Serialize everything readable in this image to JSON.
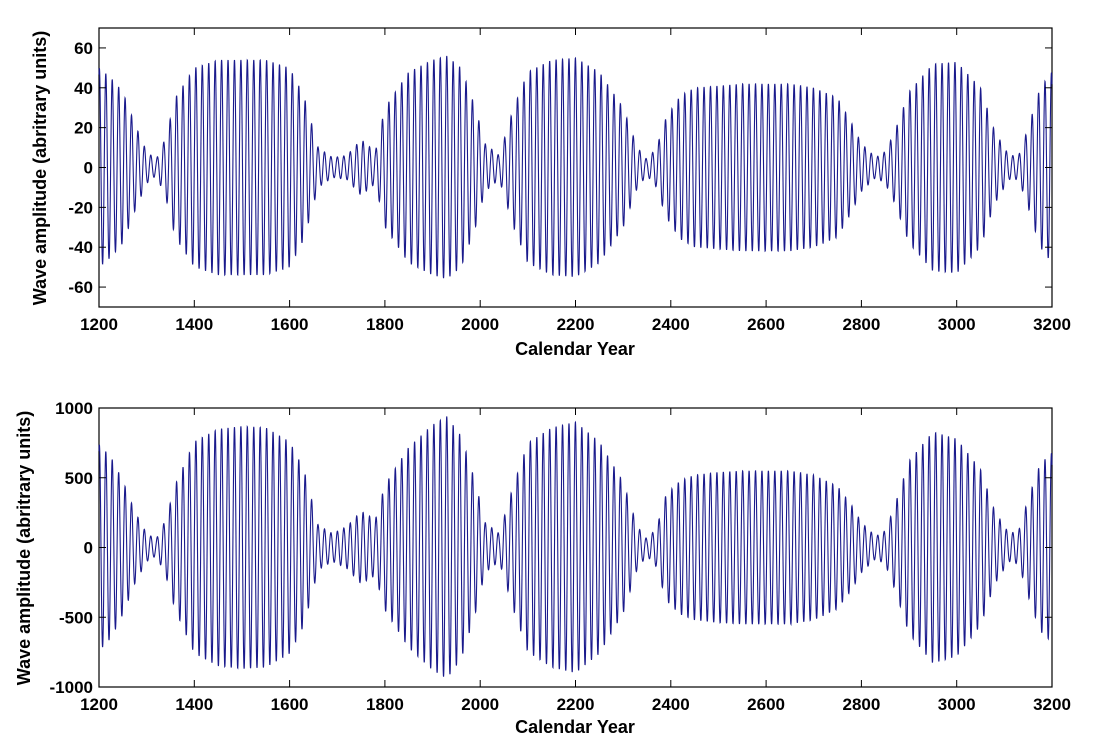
{
  "chart_data": [
    {
      "type": "line",
      "title": "",
      "xlabel": "Calendar Year",
      "ylabel": "Wave amplitude (abritrary units)",
      "xlim": [
        1200,
        3200
      ],
      "ylim": [
        -70,
        70
      ],
      "xticks": [
        1200,
        1400,
        1600,
        1800,
        2000,
        2200,
        2400,
        2600,
        2800,
        3000,
        3200
      ],
      "xtick_labels": [
        "1200",
        "1400",
        "1600",
        "1800",
        "2000",
        "2200",
        "2400",
        "2600",
        "2800",
        "3000",
        "3200"
      ],
      "yticks": [
        -60,
        -40,
        -20,
        0,
        20,
        40,
        60
      ],
      "ytick_labels": [
        "-60",
        "-40",
        "-20",
        "0",
        "20",
        "40",
        "60"
      ],
      "grid": false,
      "line_color": "#1a1a8c",
      "series": [
        {
          "x": [
            1200,
            1225,
            1250,
            1275,
            1300,
            1320,
            1340,
            1360,
            1400,
            1450,
            1500,
            1550,
            1600,
            1630,
            1660,
            1690,
            1720,
            1750,
            1780,
            1800,
            1850,
            1900,
            1930,
            1960,
            1990,
            2010,
            2040,
            2070,
            2100,
            2150,
            2200,
            2250,
            2300,
            2330,
            2350,
            2370,
            2390,
            2420,
            2450,
            2500,
            2550,
            2600,
            2650,
            2700,
            2750,
            2780,
            2800,
            2830,
            2850,
            2870,
            2900,
            2950,
            3000,
            3050,
            3080,
            3110,
            3130,
            3150,
            3175,
            3200
          ],
          "envelope": [
            50,
            45,
            38,
            22,
            8,
            4,
            15,
            35,
            50,
            54,
            54,
            54,
            50,
            36,
            10,
            5,
            6,
            14,
            8,
            30,
            48,
            54,
            56,
            50,
            30,
            12,
            6,
            30,
            48,
            54,
            55,
            48,
            30,
            10,
            4,
            10,
            25,
            36,
            40,
            41,
            42,
            42,
            42,
            40,
            35,
            22,
            12,
            5,
            8,
            18,
            38,
            52,
            53,
            40,
            18,
            6,
            6,
            20,
            40,
            48
          ],
          "period_years": 13.5
        }
      ]
    },
    {
      "type": "line",
      "title": "",
      "xlabel": "Calendar Year",
      "ylabel": "Wave amplitude (abritrary units)",
      "xlim": [
        1200,
        3200
      ],
      "ylim": [
        -1000,
        1000
      ],
      "xticks": [
        1200,
        1400,
        1600,
        1800,
        2000,
        2200,
        2400,
        2600,
        2800,
        3000,
        3200
      ],
      "xtick_labels": [
        "1200",
        "1400",
        "1600",
        "1800",
        "2000",
        "2200",
        "2400",
        "2600",
        "2800",
        "3000",
        "3200"
      ],
      "yticks": [
        -1000,
        -500,
        0,
        500,
        1000
      ],
      "ytick_labels": [
        "-1000",
        "-500",
        "0",
        "500",
        "1000"
      ],
      "grid": false,
      "line_color": "#1a1a8c",
      "series": [
        {
          "x": [
            1200,
            1225,
            1250,
            1275,
            1300,
            1320,
            1340,
            1360,
            1400,
            1450,
            1500,
            1550,
            1600,
            1630,
            1660,
            1690,
            1720,
            1750,
            1780,
            1800,
            1850,
            1900,
            1930,
            1960,
            1990,
            2010,
            2040,
            2070,
            2100,
            2150,
            2200,
            2250,
            2300,
            2330,
            2350,
            2370,
            2390,
            2420,
            2450,
            2500,
            2550,
            2600,
            2650,
            2700,
            2750,
            2780,
            2800,
            2830,
            2850,
            2870,
            2900,
            2950,
            3000,
            3050,
            3080,
            3110,
            3130,
            3150,
            3175,
            3200
          ],
          "envelope": [
            740,
            650,
            480,
            260,
            100,
            60,
            200,
            450,
            760,
            850,
            870,
            860,
            760,
            560,
            160,
            100,
            150,
            260,
            200,
            450,
            720,
            880,
            940,
            800,
            470,
            180,
            100,
            450,
            750,
            860,
            900,
            760,
            470,
            150,
            60,
            140,
            380,
            480,
            520,
            540,
            550,
            550,
            550,
            520,
            440,
            300,
            180,
            80,
            120,
            300,
            620,
            830,
            780,
            560,
            260,
            100,
            120,
            350,
            600,
            680
          ],
          "period_years": 13.5
        }
      ]
    }
  ]
}
